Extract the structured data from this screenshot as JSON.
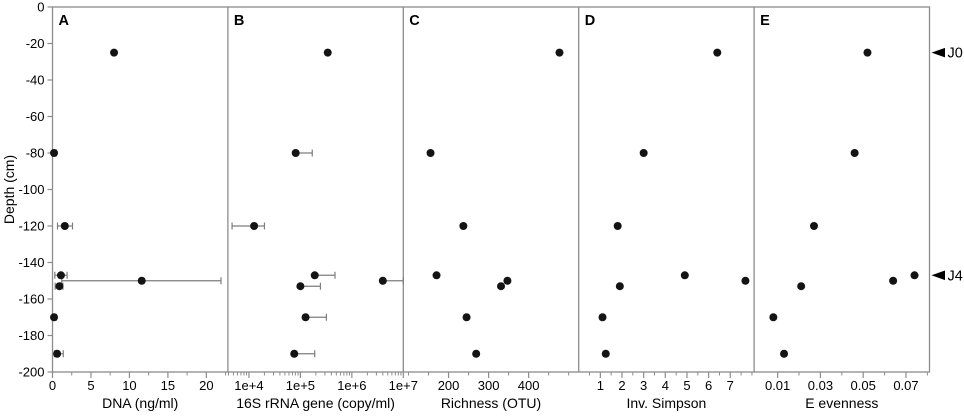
{
  "figure": {
    "background": "#ffffff",
    "colors": {
      "frame": "#8c8c8c",
      "tick": "#8c8c8c",
      "errorbar": "#7d7d7d",
      "point": "#141414",
      "text": "#000000",
      "marker": "#000000"
    }
  },
  "chart_data": {
    "type": "scatter",
    "title": "",
    "layout": "5 horizontal depth-profile panels sharing one depth axis",
    "y_axis": {
      "label": "Depth (cm)",
      "lim": [
        -200,
        0
      ],
      "ticks": [
        0,
        -20,
        -40,
        -60,
        -80,
        -100,
        -120,
        -140,
        -160,
        -180,
        -200
      ],
      "tick_labels": [
        "0",
        "-20",
        "-40",
        "-60",
        "-80",
        "-100",
        "-120",
        "-140",
        "-160",
        "-180",
        "-200"
      ]
    },
    "depth_markers": [
      {
        "label": "J0",
        "depth": -25
      },
      {
        "label": "J4",
        "depth": -147
      }
    ],
    "panels": [
      {
        "letter": "A",
        "xlabel": "DNA (ng/ml)",
        "scale": "linear",
        "xlim": [
          0,
          22.8
        ],
        "tick_values": [
          0,
          5,
          10,
          15,
          20
        ],
        "tick_labels": [
          "0",
          "5",
          "10",
          "15",
          "20"
        ],
        "minor_ticks": [
          2.5,
          7.5,
          12.5,
          17.5,
          22.5
        ],
        "points": [
          {
            "depth": -25,
            "v": 8.0
          },
          {
            "depth": -80,
            "v": 0.2,
            "lo": 0.05,
            "hi": 0.5
          },
          {
            "depth": -120,
            "v": 1.6,
            "lo": 0.65,
            "hi": 2.6
          },
          {
            "depth": -147,
            "v": 1.1,
            "lo": 0.3,
            "hi": 1.9
          },
          {
            "depth": -150,
            "v": 11.6,
            "lo": 1.2,
            "hi": 21.9
          },
          {
            "depth": -153,
            "v": 0.9,
            "lo": 0.35,
            "hi": 1.35
          },
          {
            "depth": -170,
            "v": 0.2,
            "lo": 0.05,
            "hi": 0.5
          },
          {
            "depth": -190,
            "v": 0.6,
            "lo": 0.25,
            "hi": 1.4
          }
        ]
      },
      {
        "letter": "B",
        "xlabel": "16S rRNA gene (copy/ml)",
        "scale": "log",
        "xlim": [
          3900,
          10000000
        ],
        "tick_values": [
          10000,
          100000,
          1000000,
          10000000
        ],
        "tick_labels": [
          "1e+4",
          "1e+5",
          "1e+6",
          "1e+7"
        ],
        "minor_ticks": [
          4000,
          5000,
          6000,
          7000,
          8000,
          9000,
          20000,
          30000,
          40000,
          50000,
          60000,
          70000,
          80000,
          90000,
          200000,
          300000,
          400000,
          500000,
          600000,
          700000,
          800000,
          900000,
          2000000,
          3000000,
          4000000,
          5000000,
          6000000,
          7000000,
          8000000,
          9000000
        ],
        "points": [
          {
            "depth": -25,
            "v": 340000
          },
          {
            "depth": -80,
            "v": 81000,
            "hi": 170000
          },
          {
            "depth": -120,
            "v": 12600,
            "lo": 4700,
            "hi": 20000
          },
          {
            "depth": -147,
            "v": 190000,
            "hi": 470000
          },
          {
            "depth": -150,
            "v": 4000000,
            "hi": 10000000
          },
          {
            "depth": -153,
            "v": 100000,
            "hi": 245000
          },
          {
            "depth": -170,
            "v": 126000,
            "hi": 320000
          },
          {
            "depth": -190,
            "v": 76000,
            "hi": 190000
          }
        ]
      },
      {
        "letter": "C",
        "xlabel": "Richness (OTU)",
        "scale": "linear",
        "xlim": [
          87,
          525
        ],
        "tick_values": [
          200,
          300,
          400
        ],
        "tick_labels": [
          "200",
          "300",
          "400"
        ],
        "minor_ticks": [
          100,
          150,
          250,
          350,
          450,
          500
        ],
        "points": [
          {
            "depth": -25,
            "v": 477
          },
          {
            "depth": -80,
            "v": 155
          },
          {
            "depth": -120,
            "v": 237
          },
          {
            "depth": -147,
            "v": 170
          },
          {
            "depth": -150,
            "v": 347
          },
          {
            "depth": -153,
            "v": 331
          },
          {
            "depth": -170,
            "v": 245
          },
          {
            "depth": -190,
            "v": 269
          }
        ]
      },
      {
        "letter": "D",
        "xlabel": "Inv. Simpson",
        "scale": "linear",
        "xlim": [
          0,
          8.1
        ],
        "tick_values": [
          1,
          2,
          3,
          4,
          5,
          6,
          7
        ],
        "tick_labels": [
          "1",
          "2",
          "3",
          "4",
          "5",
          "6",
          "7"
        ],
        "minor_ticks": [
          0.5,
          1.5,
          2.5,
          3.5,
          4.5,
          5.5,
          6.5,
          7.5,
          8.0
        ],
        "points": [
          {
            "depth": -25,
            "v": 6.4
          },
          {
            "depth": -80,
            "v": 3.0
          },
          {
            "depth": -120,
            "v": 1.8
          },
          {
            "depth": -147,
            "v": 4.9
          },
          {
            "depth": -150,
            "v": 7.7
          },
          {
            "depth": -153,
            "v": 1.9
          },
          {
            "depth": -170,
            "v": 1.1
          },
          {
            "depth": -190,
            "v": 1.25
          }
        ]
      },
      {
        "letter": "E",
        "xlabel": "E evenness",
        "scale": "linear",
        "xlim": [
          -0.001,
          0.081
        ],
        "tick_values": [
          0.01,
          0.03,
          0.05,
          0.07
        ],
        "tick_labels": [
          "0.01",
          "0.03",
          "0.05",
          "0.07"
        ],
        "minor_ticks": [
          0.02,
          0.04,
          0.06,
          0.08
        ],
        "points": [
          {
            "depth": -25,
            "v": 0.052
          },
          {
            "depth": -80,
            "v": 0.046
          },
          {
            "depth": -120,
            "v": 0.027
          },
          {
            "depth": -147,
            "v": 0.074
          },
          {
            "depth": -150,
            "v": 0.064
          },
          {
            "depth": -153,
            "v": 0.021
          },
          {
            "depth": -170,
            "v": 0.008
          },
          {
            "depth": -190,
            "v": 0.013
          }
        ]
      }
    ]
  }
}
